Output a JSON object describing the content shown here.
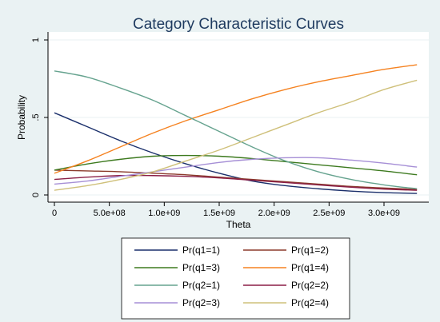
{
  "chart_data": {
    "type": "line",
    "title": "Category Characteristic Curves",
    "xlabel": "Theta",
    "ylabel": "Probability",
    "xlim": [
      0,
      3300000000
    ],
    "ylim": [
      0,
      1
    ],
    "grid": true,
    "x_ticks": [
      {
        "value": 0,
        "label": "0"
      },
      {
        "value": 500000000,
        "label": "5.0e+08"
      },
      {
        "value": 1000000000,
        "label": "1.0e+09"
      },
      {
        "value": 1500000000,
        "label": "1.5e+09"
      },
      {
        "value": 2000000000,
        "label": "2.0e+09"
      },
      {
        "value": 2500000000,
        "label": "2.5e+09"
      },
      {
        "value": 3000000000,
        "label": "3.0e+09"
      }
    ],
    "y_ticks": [
      {
        "value": 0,
        "label": "0"
      },
      {
        "value": 0.5,
        "label": ".5"
      },
      {
        "value": 1,
        "label": "1"
      }
    ],
    "legend_position": "bottom",
    "x": [
      0,
      300000000,
      600000000,
      900000000,
      1200000000,
      1500000000,
      1800000000,
      2100000000,
      2400000000,
      2700000000,
      3000000000,
      3300000000
    ],
    "series": [
      {
        "name": "Pr(q1=1)",
        "color": "#1a2f6b",
        "values": [
          0.53,
          0.44,
          0.35,
          0.27,
          0.2,
          0.14,
          0.09,
          0.06,
          0.04,
          0.025,
          0.015,
          0.01
        ]
      },
      {
        "name": "Pr(q1=2)",
        "color": "#8b3a2b",
        "values": [
          0.16,
          0.155,
          0.15,
          0.14,
          0.13,
          0.115,
          0.1,
          0.085,
          0.07,
          0.055,
          0.045,
          0.035
        ]
      },
      {
        "name": "Pr(q1=3)",
        "color": "#3d7a1f",
        "values": [
          0.16,
          0.2,
          0.23,
          0.25,
          0.255,
          0.25,
          0.235,
          0.215,
          0.195,
          0.175,
          0.155,
          0.13
        ]
      },
      {
        "name": "Pr(q1=4)",
        "color": "#f58220",
        "values": [
          0.14,
          0.22,
          0.31,
          0.4,
          0.48,
          0.55,
          0.62,
          0.68,
          0.73,
          0.77,
          0.81,
          0.84
        ]
      },
      {
        "name": "Pr(q2=1)",
        "color": "#66a38f",
        "values": [
          0.8,
          0.76,
          0.69,
          0.61,
          0.51,
          0.41,
          0.31,
          0.22,
          0.15,
          0.1,
          0.065,
          0.04
        ]
      },
      {
        "name": "Pr(q2=2)",
        "color": "#8b1f47",
        "values": [
          0.1,
          0.115,
          0.125,
          0.125,
          0.12,
          0.11,
          0.095,
          0.08,
          0.065,
          0.05,
          0.038,
          0.03
        ]
      },
      {
        "name": "Pr(q2=3)",
        "color": "#a68fd6",
        "values": [
          0.07,
          0.09,
          0.12,
          0.15,
          0.18,
          0.21,
          0.23,
          0.24,
          0.24,
          0.225,
          0.205,
          0.18
        ]
      },
      {
        "name": "Pr(q2=4)",
        "color": "#cfc07a",
        "values": [
          0.03,
          0.06,
          0.1,
          0.15,
          0.22,
          0.29,
          0.37,
          0.45,
          0.53,
          0.6,
          0.68,
          0.74
        ]
      }
    ],
    "legend_order": [
      [
        "Pr(q1=1)",
        "Pr(q1=2)"
      ],
      [
        "Pr(q1=3)",
        "Pr(q1=4)"
      ],
      [
        "Pr(q2=1)",
        "Pr(q2=2)"
      ],
      [
        "Pr(q2=3)",
        "Pr(q2=4)"
      ]
    ],
    "colors": {
      "background": "#eaf2f3",
      "plot_area": "#ffffff",
      "gridline": "#eaf2f3",
      "title": "#1e3a5f"
    }
  }
}
